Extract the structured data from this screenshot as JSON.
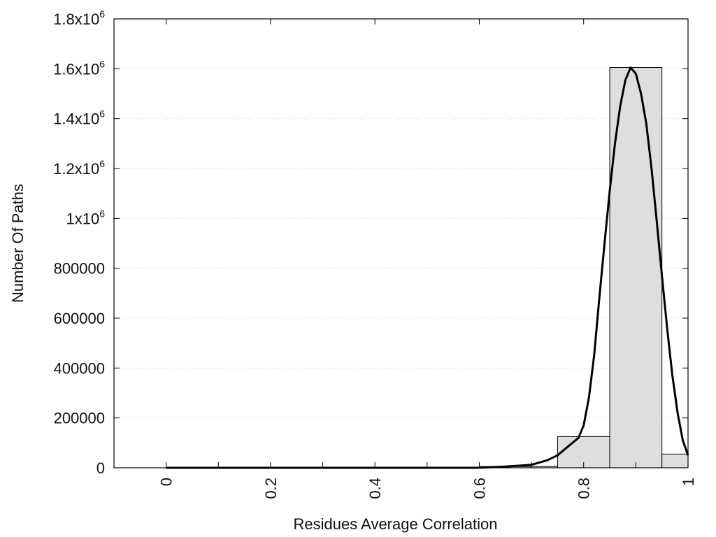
{
  "chart_data": {
    "type": "bar",
    "xlabel": "Residues Average Correlation",
    "ylabel": "Number Of Paths",
    "xlim": [
      -0.1,
      1.0
    ],
    "ylim": [
      0,
      1800000
    ],
    "grid": true,
    "x_ticks": [
      {
        "value": 0,
        "label": "0"
      },
      {
        "value": 0.2,
        "label": "0.2"
      },
      {
        "value": 0.4,
        "label": "0.4"
      },
      {
        "value": 0.6,
        "label": "0.6"
      },
      {
        "value": 0.8,
        "label": "0.8"
      },
      {
        "value": 1.0,
        "label": "1"
      }
    ],
    "x_minor_ticks": [
      0.1,
      0.3,
      0.5,
      0.7,
      0.9
    ],
    "y_ticks": [
      {
        "value": 0,
        "base": "0",
        "sup": ""
      },
      {
        "value": 200000,
        "base": "200000",
        "sup": ""
      },
      {
        "value": 400000,
        "base": "400000",
        "sup": ""
      },
      {
        "value": 600000,
        "base": "600000",
        "sup": ""
      },
      {
        "value": 800000,
        "base": "800000",
        "sup": ""
      },
      {
        "value": 1000000,
        "base": "1x10",
        "sup": "6"
      },
      {
        "value": 1200000,
        "base": "1.2x10",
        "sup": "6"
      },
      {
        "value": 1400000,
        "base": "1.4x10",
        "sup": "6"
      },
      {
        "value": 1600000,
        "base": "1.6x10",
        "sup": "6"
      },
      {
        "value": 1800000,
        "base": "1.8x10",
        "sup": "6"
      }
    ],
    "bins": [
      {
        "x0": 0.6,
        "x1": 0.75,
        "value": 5000
      },
      {
        "x0": 0.75,
        "x1": 0.85,
        "value": 125000
      },
      {
        "x0": 0.85,
        "x1": 0.95,
        "value": 1605000
      },
      {
        "x0": 0.95,
        "x1": 1.0,
        "value": 55000
      }
    ],
    "fit_curve": {
      "x": [
        0.0,
        0.6,
        0.65,
        0.7,
        0.73,
        0.75,
        0.77,
        0.79,
        0.8,
        0.81,
        0.82,
        0.83,
        0.84,
        0.85,
        0.86,
        0.87,
        0.88,
        0.89,
        0.9,
        0.91,
        0.92,
        0.93,
        0.94,
        0.95,
        0.96,
        0.97,
        0.98,
        0.99,
        1.0
      ],
      "y": [
        0,
        0,
        5000,
        12000,
        30000,
        50000,
        85000,
        120000,
        170000,
        280000,
        450000,
        680000,
        900000,
        1110000,
        1300000,
        1450000,
        1555000,
        1605000,
        1580000,
        1500000,
        1380000,
        1200000,
        990000,
        770000,
        560000,
        370000,
        220000,
        110000,
        50000
      ]
    }
  }
}
